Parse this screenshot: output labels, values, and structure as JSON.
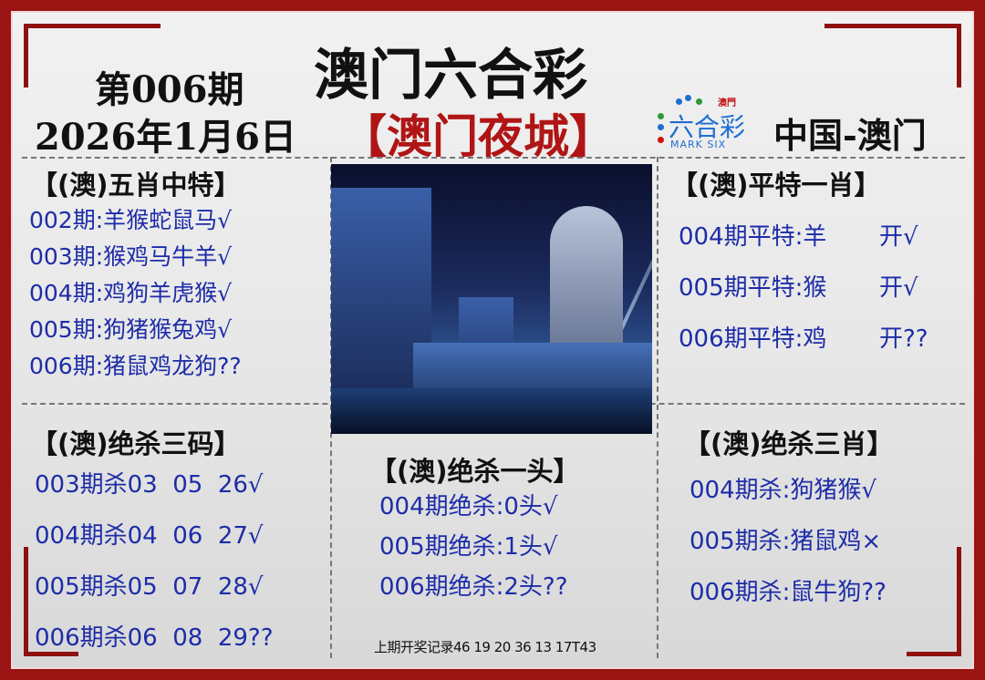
{
  "header": {
    "title": "澳门六合彩",
    "issue": "第006期",
    "date": "2026年1月6日",
    "subtitle": "【澳门夜城】",
    "logo": {
      "top": "澳門",
      "main": "六合彩",
      "sub": "MARK SIX"
    },
    "region": "中国-澳门"
  },
  "colors": {
    "border": "#9a1414",
    "accent_red": "#b01515",
    "text_blue": "#1d2ca8"
  },
  "five_zodiac": {
    "title": "【(澳)五肖中特】",
    "items": [
      "002期:羊猴蛇鼠马√",
      "003期:猴鸡马牛羊√",
      "004期:鸡狗羊虎猴√",
      "005期:狗猪猴兔鸡√",
      "006期:猪鼠鸡龙狗??"
    ]
  },
  "flat_special": {
    "title": "【(澳)平特一肖】",
    "items": [
      {
        "label": "004期平特:羊",
        "result": "开√"
      },
      {
        "label": "005期平特:猴",
        "result": "开√"
      },
      {
        "label": "006期平特:鸡",
        "result": "开??"
      }
    ]
  },
  "kill_three_codes": {
    "title": "【(澳)绝杀三码】",
    "items": [
      "003期杀03  05  26√",
      "004期杀04  06  27√",
      "005期杀05  07  28√",
      "006期杀06  08  29??"
    ]
  },
  "kill_one_head": {
    "title": "【(澳)绝杀一头】",
    "items": [
      "004期绝杀:0头√",
      "005期绝杀:1头√",
      "006期绝杀:2头??"
    ]
  },
  "kill_three_zodiac": {
    "title": "【(澳)绝杀三肖】",
    "items": [
      "004期杀:狗猪猴√",
      "005期杀:猪鼠鸡×",
      "006期杀:鼠牛狗??"
    ]
  },
  "footer": {
    "last_draw": "上期开奖记录46 19 20 36 13 17T43"
  }
}
